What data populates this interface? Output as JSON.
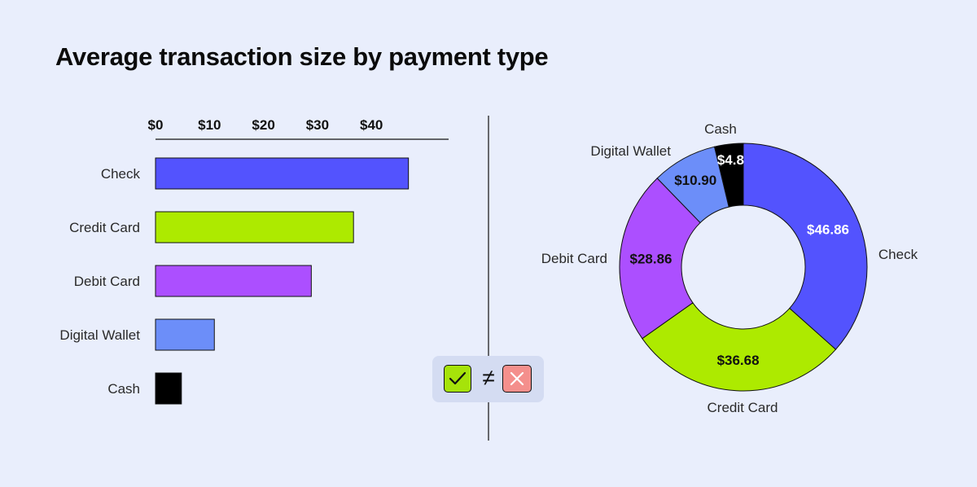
{
  "title": "Average transaction size by payment type",
  "chart_data": [
    {
      "type": "bar",
      "orientation": "horizontal",
      "categories": [
        "Check",
        "Credit Card",
        "Debit Card",
        "Digital Wallet",
        "Cash"
      ],
      "values": [
        46.86,
        36.68,
        28.86,
        10.9,
        4.8
      ],
      "colors": [
        "#5353fe",
        "#adea00",
        "#ac4fff",
        "#6c8ef9",
        "#000000"
      ],
      "x_ticks": [
        "$0",
        "$10",
        "$20",
        "$30",
        "$40"
      ],
      "x_tick_values": [
        0,
        10,
        20,
        30,
        40
      ],
      "xlim": [
        0,
        50
      ],
      "axis_position": "top",
      "grid": false
    },
    {
      "type": "pie",
      "style": "donut",
      "start": "top",
      "direction": "clockwise",
      "slices": [
        {
          "label": "Check",
          "value": 46.86,
          "value_label": "$46.86",
          "color": "#5353fe",
          "value_text_color": "#ffffff"
        },
        {
          "label": "Credit Card",
          "value": 36.68,
          "value_label": "$36.68",
          "color": "#adea00",
          "value_text_color": "#111111"
        },
        {
          "label": "Debit Card",
          "value": 28.86,
          "value_label": "$28.86",
          "color": "#ac4fff",
          "value_text_color": "#111111"
        },
        {
          "label": "Digital Wallet",
          "value": 10.9,
          "value_label": "$10.90",
          "color": "#6c8ef9",
          "value_text_color": "#111111"
        },
        {
          "label": "Cash",
          "value": 4.8,
          "value_label": "$4.8",
          "color": "#000000",
          "value_text_color": "#ffffff"
        }
      ]
    }
  ],
  "badge": {
    "symbol": "≠",
    "left_icon": "check-icon",
    "right_icon": "cross-icon",
    "left_color": "#a6e30a",
    "right_color": "#f48f8c"
  }
}
